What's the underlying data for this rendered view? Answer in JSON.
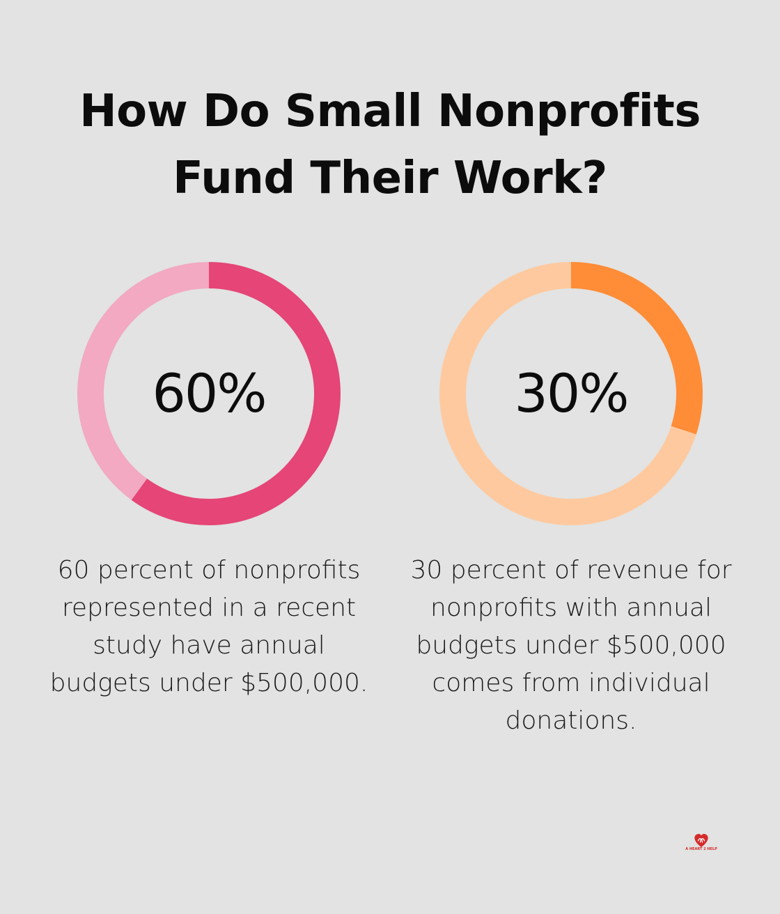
{
  "title_lines": [
    "How Do Small Nonprofits",
    "Fund Their Work?"
  ],
  "chart_data": [
    {
      "type": "pie",
      "style": "donut",
      "center_label": "60%",
      "values": [
        60,
        40
      ],
      "colors": [
        "#e54577",
        "#f2a9c1"
      ],
      "caption": "60 percent of nonprofits represented in a recent study have annual budgets under $500,000."
    },
    {
      "type": "pie",
      "style": "donut",
      "center_label": "30%",
      "values": [
        30,
        70
      ],
      "colors": [
        "#ff8c37",
        "#ffc99f"
      ],
      "caption": "30 percent of revenue for nonprofits with annual budgets under $500,000 comes from individual donations."
    }
  ],
  "logo": {
    "icon": "heart-hands-icon",
    "text": "A HEART 2 HELP",
    "color": "#d62a2a"
  }
}
